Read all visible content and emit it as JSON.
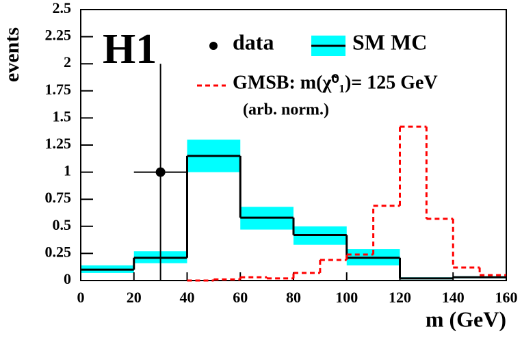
{
  "chart_data": {
    "type": "histogram",
    "logo": "H1",
    "ylabel": "events",
    "xlabel": "m (GeV)",
    "xlim": [
      0,
      160
    ],
    "xticks": [
      0,
      20,
      40,
      60,
      80,
      100,
      120,
      140,
      160
    ],
    "ylim": [
      0,
      2.5
    ],
    "yticks": [
      0,
      0.25,
      0.5,
      0.75,
      1,
      1.25,
      1.5,
      1.75,
      2,
      2.25,
      2.5
    ],
    "data": {
      "name": "data",
      "color": "#000000",
      "x": [
        30
      ],
      "xerr": [
        10
      ],
      "values": [
        1
      ],
      "yerr": [
        1
      ]
    },
    "sm_mc": {
      "name": "SM MC",
      "color": "#000000",
      "band_color": "#00ffff",
      "bins": [
        0,
        20,
        40,
        60,
        80,
        100,
        120,
        140,
        160
      ],
      "values": [
        0.1,
        0.21,
        1.15,
        0.58,
        0.42,
        0.21,
        0.02,
        0.03
      ],
      "band_low": [
        0.07,
        0.16,
        1.0,
        0.47,
        0.33,
        0.14,
        0.01,
        0.02
      ],
      "band_high": [
        0.14,
        0.27,
        1.3,
        0.68,
        0.5,
        0.29,
        0.03,
        0.04
      ]
    },
    "gmsb": {
      "name": "GMSB: m(χ̃⁰₁)= 125 GeV",
      "note": "(arb. norm.)",
      "color": "#ff0000",
      "bins": [
        40,
        50,
        60,
        70,
        80,
        90,
        100,
        110,
        120,
        130,
        140,
        150,
        160
      ],
      "values": [
        0.0,
        0.01,
        0.03,
        0.02,
        0.07,
        0.19,
        0.24,
        0.69,
        1.42,
        0.57,
        0.12,
        0.05
      ]
    }
  }
}
